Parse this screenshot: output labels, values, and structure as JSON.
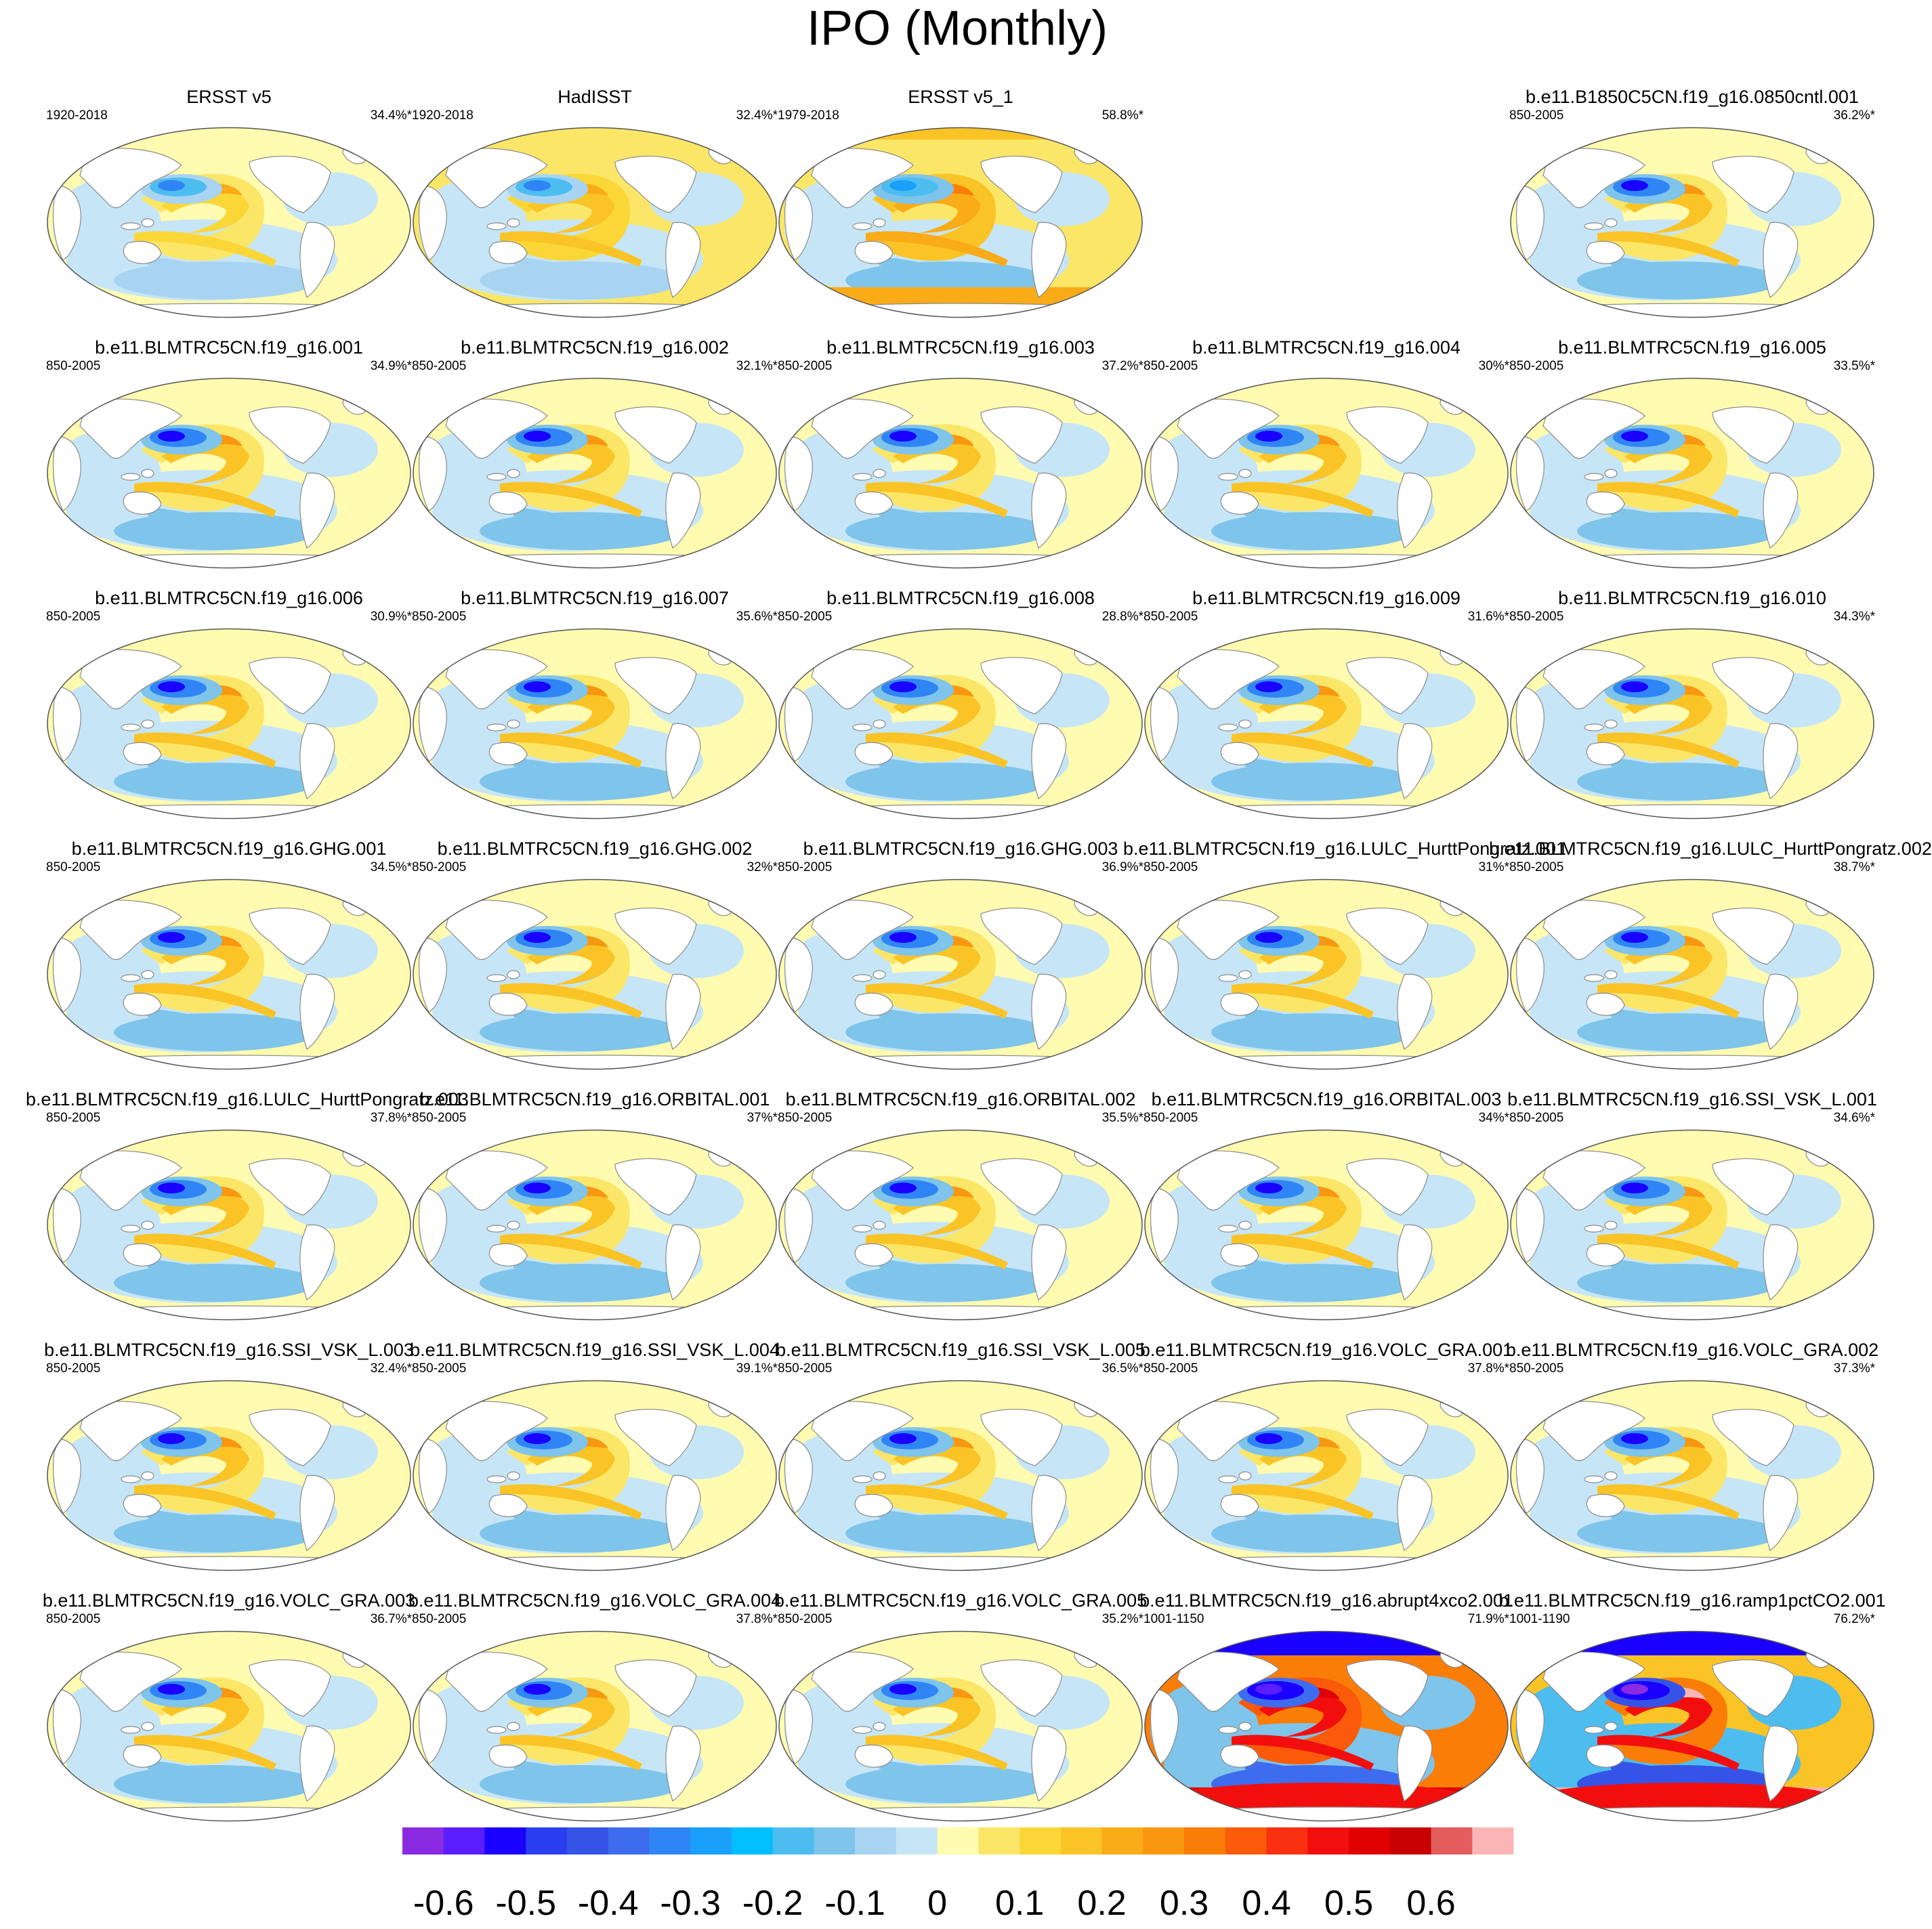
{
  "title": "IPO (Monthly)",
  "chart_data": {
    "type": "heatmap",
    "description_units": "IPO regression pattern panels on a global map projection",
    "panels": [
      {
        "row": 0,
        "col": 0,
        "title": "ERSST v5",
        "period": "1920-2018",
        "percent": "34.4%*",
        "style": "obs"
      },
      {
        "row": 0,
        "col": 1,
        "title": "HadISST",
        "period": "1920-2018",
        "percent": "32.4%*",
        "style": "obs2"
      },
      {
        "row": 0,
        "col": 2,
        "title": "ERSST v5_1",
        "period": "1979-2018",
        "percent": "58.8%*",
        "style": "obs3"
      },
      {
        "row": 0,
        "col": 4,
        "title": "b.e11.B1850C5CN.f19_g16.0850cntl.001",
        "period": "850-2005",
        "percent": "36.2%*",
        "style": "model"
      },
      {
        "row": 1,
        "col": 0,
        "title": "b.e11.BLMTRC5CN.f19_g16.001",
        "period": "850-2005",
        "percent": "34.9%*",
        "style": "model"
      },
      {
        "row": 1,
        "col": 1,
        "title": "b.e11.BLMTRC5CN.f19_g16.002",
        "period": "850-2005",
        "percent": "32.1%*",
        "style": "model"
      },
      {
        "row": 1,
        "col": 2,
        "title": "b.e11.BLMTRC5CN.f19_g16.003",
        "period": "850-2005",
        "percent": "37.2%*",
        "style": "model"
      },
      {
        "row": 1,
        "col": 3,
        "title": "b.e11.BLMTRC5CN.f19_g16.004",
        "period": "850-2005",
        "percent": "30%*",
        "style": "model"
      },
      {
        "row": 1,
        "col": 4,
        "title": "b.e11.BLMTRC5CN.f19_g16.005",
        "period": "850-2005",
        "percent": "33.5%*",
        "style": "model"
      },
      {
        "row": 2,
        "col": 0,
        "title": "b.e11.BLMTRC5CN.f19_g16.006",
        "period": "850-2005",
        "percent": "30.9%*",
        "style": "model"
      },
      {
        "row": 2,
        "col": 1,
        "title": "b.e11.BLMTRC5CN.f19_g16.007",
        "period": "850-2005",
        "percent": "35.6%*",
        "style": "model"
      },
      {
        "row": 2,
        "col": 2,
        "title": "b.e11.BLMTRC5CN.f19_g16.008",
        "period": "850-2005",
        "percent": "28.8%*",
        "style": "model"
      },
      {
        "row": 2,
        "col": 3,
        "title": "b.e11.BLMTRC5CN.f19_g16.009",
        "period": "850-2005",
        "percent": "31.6%*",
        "style": "model"
      },
      {
        "row": 2,
        "col": 4,
        "title": "b.e11.BLMTRC5CN.f19_g16.010",
        "period": "850-2005",
        "percent": "34.3%*",
        "style": "model"
      },
      {
        "row": 3,
        "col": 0,
        "title": "b.e11.BLMTRC5CN.f19_g16.GHG.001",
        "period": "850-2005",
        "percent": "34.5%*",
        "style": "model"
      },
      {
        "row": 3,
        "col": 1,
        "title": "b.e11.BLMTRC5CN.f19_g16.GHG.002",
        "period": "850-2005",
        "percent": "32%*",
        "style": "model"
      },
      {
        "row": 3,
        "col": 2,
        "title": "b.e11.BLMTRC5CN.f19_g16.GHG.003",
        "period": "850-2005",
        "percent": "36.9%*",
        "style": "model"
      },
      {
        "row": 3,
        "col": 3,
        "title": "b.e11.BLMTRC5CN.f19_g16.LULC_HurttPongratz.001",
        "period": "850-2005",
        "percent": "31%*",
        "style": "model"
      },
      {
        "row": 3,
        "col": 4,
        "title": "b.e11.BLMTRC5CN.f19_g16.LULC_HurttPongratz.002",
        "period": "850-2005",
        "percent": "38.7%*",
        "style": "model"
      },
      {
        "row": 4,
        "col": 0,
        "title": "b.e11.BLMTRC5CN.f19_g16.LULC_HurttPongratz.003",
        "period": "850-2005",
        "percent": "37.8%*",
        "style": "model"
      },
      {
        "row": 4,
        "col": 1,
        "title": "b.e11.BLMTRC5CN.f19_g16.ORBITAL.001",
        "period": "850-2005",
        "percent": "37%*",
        "style": "model"
      },
      {
        "row": 4,
        "col": 2,
        "title": "b.e11.BLMTRC5CN.f19_g16.ORBITAL.002",
        "period": "850-2005",
        "percent": "35.5%*",
        "style": "model"
      },
      {
        "row": 4,
        "col": 3,
        "title": "b.e11.BLMTRC5CN.f19_g16.ORBITAL.003",
        "period": "850-2005",
        "percent": "34%*",
        "style": "model"
      },
      {
        "row": 4,
        "col": 4,
        "title": "b.e11.BLMTRC5CN.f19_g16.SSI_VSK_L.001",
        "period": "850-2005",
        "percent": "34.6%*",
        "style": "model"
      },
      {
        "row": 5,
        "col": 0,
        "title": "b.e11.BLMTRC5CN.f19_g16.SSI_VSK_L.003",
        "period": "850-2005",
        "percent": "32.4%*",
        "style": "model"
      },
      {
        "row": 5,
        "col": 1,
        "title": "b.e11.BLMTRC5CN.f19_g16.SSI_VSK_L.004",
        "period": "850-2005",
        "percent": "39.1%*",
        "style": "model"
      },
      {
        "row": 5,
        "col": 2,
        "title": "b.e11.BLMTRC5CN.f19_g16.SSI_VSK_L.005",
        "period": "850-2005",
        "percent": "36.5%*",
        "style": "model"
      },
      {
        "row": 5,
        "col": 3,
        "title": "b.e11.BLMTRC5CN.f19_g16.VOLC_GRA.001",
        "period": "850-2005",
        "percent": "37.8%*",
        "style": "model"
      },
      {
        "row": 5,
        "col": 4,
        "title": "b.e11.BLMTRC5CN.f19_g16.VOLC_GRA.002",
        "period": "850-2005",
        "percent": "37.3%*",
        "style": "model"
      },
      {
        "row": 6,
        "col": 0,
        "title": "b.e11.BLMTRC5CN.f19_g16.VOLC_GRA.003",
        "period": "850-2005",
        "percent": "36.7%*",
        "style": "model"
      },
      {
        "row": 6,
        "col": 1,
        "title": "b.e11.BLMTRC5CN.f19_g16.VOLC_GRA.004",
        "period": "850-2005",
        "percent": "37.8%*",
        "style": "model"
      },
      {
        "row": 6,
        "col": 2,
        "title": "b.e11.BLMTRC5CN.f19_g16.VOLC_GRA.005",
        "period": "850-2005",
        "percent": "35.2%*",
        "style": "model"
      },
      {
        "row": 6,
        "col": 3,
        "title": "b.e11.BLMTRC5CN.f19_g16.abrupt4xco2.001",
        "period": "1001-1150",
        "percent": "71.9%*",
        "style": "abrupt"
      },
      {
        "row": 6,
        "col": 4,
        "title": "b.e11.BLMTRC5CN.f19_g16.ramp1pctCO2.001",
        "period": "1001-1190",
        "percent": "76.2%*",
        "style": "ramp"
      }
    ],
    "colorbar": {
      "colors": [
        "#8a2be2",
        "#5a1eff",
        "#1a00ff",
        "#2a3ef0",
        "#3553e6",
        "#3e6cee",
        "#2f85f5",
        "#1aa0fa",
        "#00bfff",
        "#4dbdf0",
        "#7fc4ea",
        "#a8d4f2",
        "#c6e6f7",
        "#fffbb0",
        "#fbe668",
        "#fad737",
        "#fac426",
        "#f9ab18",
        "#f99710",
        "#fa7d08",
        "#fb5a0a",
        "#fb3010",
        "#f30e0e",
        "#e00000",
        "#c90000",
        "#e35d5d",
        "#fbb5b5"
      ],
      "tick_labels": [
        "-0.6",
        "-0.5",
        "-0.4",
        "-0.3",
        "-0.2",
        "-0.1",
        "0",
        "0.1",
        "0.2",
        "0.3",
        "0.4",
        "0.5",
        "0.6"
      ],
      "tick_values": [
        -0.6,
        -0.5,
        -0.4,
        -0.3,
        -0.2,
        -0.1,
        0,
        0.1,
        0.2,
        0.3,
        0.4,
        0.5,
        0.6
      ]
    }
  }
}
